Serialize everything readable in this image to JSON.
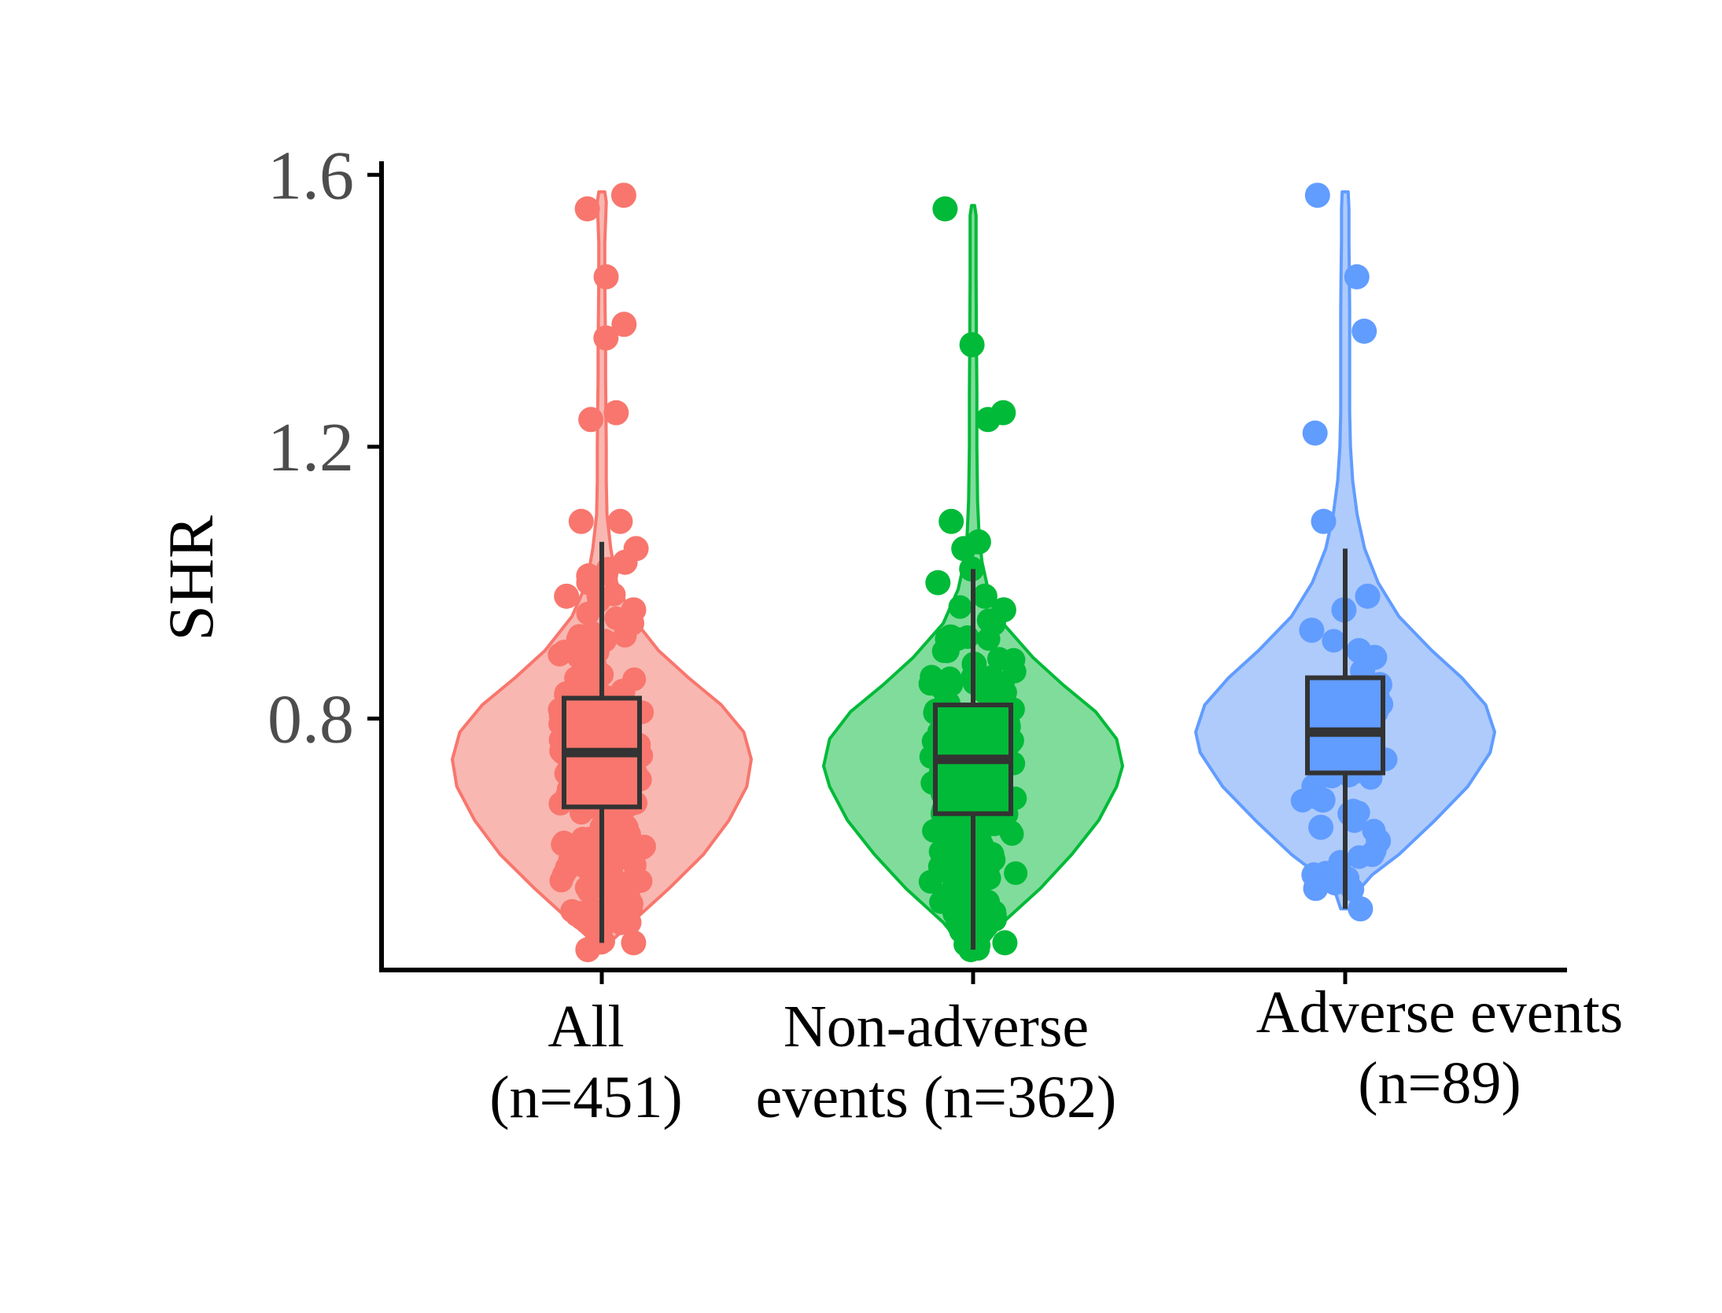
{
  "chart_data": {
    "type": "violin",
    "title": "",
    "xlabel": "",
    "ylabel": "SHR",
    "ylim": [
      0.43,
      1.62
    ],
    "yticks": [
      "0.8",
      "1.2",
      "1.6"
    ],
    "grid": false,
    "legend": "none",
    "categories": [
      {
        "line1": "All",
        "line2": "(n=451)"
      },
      {
        "line1": "Non-adverse",
        "line2": "events (n=362)"
      },
      {
        "line1": "Adverse events",
        "line2": "(n=89)"
      }
    ],
    "series": [
      {
        "name": "All (n=451)",
        "color": "#F8766D",
        "fill": "#F9B7B1",
        "n": 451,
        "box": {
          "whisker_low": 0.47,
          "q1": 0.67,
          "median": 0.75,
          "q3": 0.83,
          "whisker_high": 1.06
        },
        "density": [
          [
            0.47,
            0.05
          ],
          [
            0.5,
            0.2
          ],
          [
            0.55,
            0.45
          ],
          [
            0.6,
            0.68
          ],
          [
            0.65,
            0.85
          ],
          [
            0.7,
            0.97
          ],
          [
            0.74,
            1.0
          ],
          [
            0.78,
            0.95
          ],
          [
            0.82,
            0.8
          ],
          [
            0.86,
            0.58
          ],
          [
            0.9,
            0.38
          ],
          [
            0.95,
            0.2
          ],
          [
            1.0,
            0.1
          ],
          [
            1.05,
            0.06
          ],
          [
            1.1,
            0.035
          ],
          [
            1.15,
            0.03
          ],
          [
            1.2,
            0.03
          ],
          [
            1.25,
            0.028
          ],
          [
            1.3,
            0.025
          ],
          [
            1.35,
            0.025
          ],
          [
            1.4,
            0.022
          ],
          [
            1.45,
            0.02
          ],
          [
            1.5,
            0.02
          ],
          [
            1.56,
            0.03
          ],
          [
            1.575,
            0.02
          ]
        ],
        "points": [
          0.47,
          0.46,
          0.5,
          0.52,
          0.55,
          0.58,
          0.6,
          0.62,
          0.64,
          0.66,
          0.68,
          0.7,
          0.72,
          0.74,
          0.76,
          0.78,
          0.8,
          0.82,
          0.84,
          0.86,
          0.88,
          0.9,
          0.92,
          0.94,
          0.96,
          0.98,
          1.0,
          1.01,
          1.03,
          1.05,
          1.09,
          1.09,
          1.24,
          1.25,
          1.36,
          1.38,
          1.45,
          1.55,
          1.57
        ]
      },
      {
        "name": "Non-adverse events (n=362)",
        "color": "#00BA38",
        "fill": "#80DC9B",
        "n": 362,
        "box": {
          "whisker_low": 0.46,
          "q1": 0.66,
          "median": 0.74,
          "q3": 0.82,
          "whisker_high": 1.02
        },
        "density": [
          [
            0.46,
            0.05
          ],
          [
            0.5,
            0.2
          ],
          [
            0.55,
            0.45
          ],
          [
            0.6,
            0.66
          ],
          [
            0.65,
            0.84
          ],
          [
            0.7,
            0.96
          ],
          [
            0.73,
            1.0
          ],
          [
            0.77,
            0.96
          ],
          [
            0.81,
            0.82
          ],
          [
            0.85,
            0.6
          ],
          [
            0.89,
            0.4
          ],
          [
            0.94,
            0.2
          ],
          [
            0.99,
            0.1
          ],
          [
            1.03,
            0.06
          ],
          [
            1.07,
            0.04
          ],
          [
            1.12,
            0.03
          ],
          [
            1.2,
            0.025
          ],
          [
            1.28,
            0.025
          ],
          [
            1.36,
            0.022
          ],
          [
            1.45,
            0.02
          ],
          [
            1.54,
            0.02
          ],
          [
            1.555,
            0.01
          ]
        ],
        "points": [
          0.46,
          0.47,
          0.5,
          0.53,
          0.56,
          0.58,
          0.6,
          0.62,
          0.64,
          0.66,
          0.68,
          0.7,
          0.72,
          0.74,
          0.76,
          0.78,
          0.8,
          0.82,
          0.84,
          0.86,
          0.88,
          0.9,
          0.92,
          0.94,
          0.96,
          0.98,
          1.0,
          1.02,
          1.05,
          1.06,
          1.09,
          1.24,
          1.25,
          1.35,
          1.55
        ]
      },
      {
        "name": "Adverse events (n=89)",
        "color": "#619CFF",
        "fill": "#AECBFB",
        "n": 89,
        "box": {
          "whisker_low": 0.52,
          "q1": 0.72,
          "median": 0.78,
          "q3": 0.86,
          "whisker_high": 1.05
        },
        "density": [
          [
            0.52,
            0.03
          ],
          [
            0.54,
            0.06
          ],
          [
            0.57,
            0.18
          ],
          [
            0.6,
            0.36
          ],
          [
            0.65,
            0.6
          ],
          [
            0.7,
            0.82
          ],
          [
            0.75,
            0.97
          ],
          [
            0.78,
            1.0
          ],
          [
            0.82,
            0.94
          ],
          [
            0.86,
            0.78
          ],
          [
            0.9,
            0.58
          ],
          [
            0.95,
            0.36
          ],
          [
            1.0,
            0.22
          ],
          [
            1.05,
            0.13
          ],
          [
            1.1,
            0.08
          ],
          [
            1.15,
            0.05
          ],
          [
            1.2,
            0.035
          ],
          [
            1.25,
            0.03
          ],
          [
            1.3,
            0.03
          ],
          [
            1.35,
            0.03
          ],
          [
            1.4,
            0.03
          ],
          [
            1.45,
            0.028
          ],
          [
            1.5,
            0.025
          ],
          [
            1.55,
            0.025
          ],
          [
            1.575,
            0.02
          ]
        ],
        "points": [
          0.52,
          0.55,
          0.57,
          0.6,
          0.62,
          0.64,
          0.66,
          0.68,
          0.7,
          0.72,
          0.73,
          0.75,
          0.77,
          0.79,
          0.81,
          0.83,
          0.85,
          0.87,
          0.89,
          0.9,
          0.93,
          0.96,
          0.98,
          1.09,
          1.22,
          1.37,
          1.45,
          1.57
        ]
      }
    ]
  }
}
